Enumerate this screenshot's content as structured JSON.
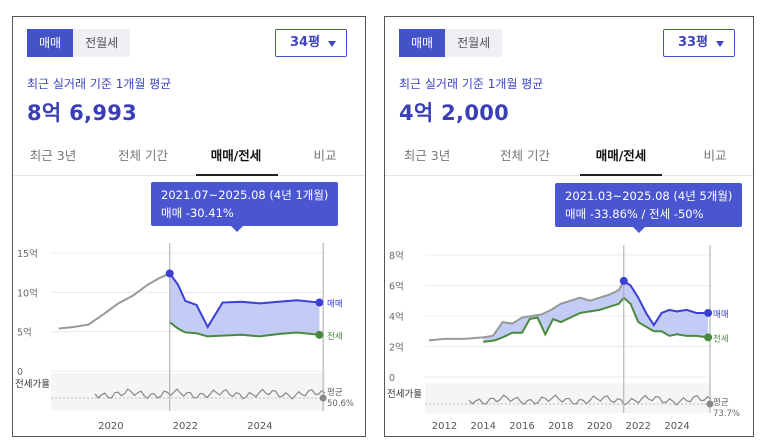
{
  "left": {
    "toggle": {
      "sale": "매매",
      "jeonse_monthly": "전월세"
    },
    "size_select": "34평",
    "subtitle": "최근 실거래 기준 1개월 평균",
    "price": "8억 6,993",
    "tabs": [
      "최근 3년",
      "전체 기간",
      "매매/전세",
      "비교"
    ],
    "active_tab": "매매/전세",
    "tooltip": {
      "period": "2021.07~2025.08 (4년 1개월)",
      "change": "매매 -30.41%"
    },
    "chart_data": {
      "type": "line",
      "y_tick_labels": [
        "15억",
        "10억",
        "5억",
        "0"
      ],
      "x_tick_labels": [
        "2020",
        "2022",
        "2024"
      ],
      "ylim": [
        0,
        15
      ],
      "series": [
        {
          "name": "매매",
          "color": "#3b3fd4",
          "x": [
            2018.6,
            2019.0,
            2019.4,
            2019.8,
            2020.2,
            2020.6,
            2021.0,
            2021.3,
            2021.58,
            2021.8,
            2022.0,
            2022.3,
            2022.6,
            2023.0,
            2023.5,
            2024.0,
            2024.5,
            2025.0,
            2025.6
          ],
          "y": [
            5.4,
            5.6,
            5.9,
            7.2,
            8.6,
            9.6,
            11.0,
            11.8,
            12.4,
            11.0,
            8.9,
            8.4,
            5.6,
            8.7,
            8.8,
            8.6,
            8.8,
            9.0,
            8.7
          ]
        },
        {
          "name": "전세",
          "color": "#4a8a3e",
          "x": [
            2021.58,
            2021.8,
            2022.0,
            2022.3,
            2022.6,
            2023.0,
            2023.5,
            2024.0,
            2024.5,
            2025.0,
            2025.6
          ],
          "y": [
            6.2,
            5.4,
            4.9,
            4.8,
            4.4,
            4.5,
            4.6,
            4.4,
            4.7,
            4.9,
            4.6
          ]
        }
      ],
      "sub_chart": {
        "label": "전세가율",
        "avg_label": "평균",
        "avg_value": "50.6%"
      }
    }
  },
  "right": {
    "toggle": {
      "sale": "매매",
      "jeonse_monthly": "전월세"
    },
    "size_select": "33평",
    "subtitle": "최근 실거래 기준 1개월 평균",
    "price": "4억 2,000",
    "tabs": [
      "최근 3년",
      "전체 기간",
      "매매/전세",
      "비교"
    ],
    "active_tab": "매매/전세",
    "tooltip": {
      "period": "2021.03~2025.08 (4년 5개월)",
      "change": "매매 -33.86%  /  전세 -50%"
    },
    "chart_data": {
      "type": "line",
      "y_tick_labels": [
        "8억",
        "6억",
        "4억",
        "2억",
        "0"
      ],
      "x_tick_labels": [
        "2012",
        "2014",
        "2016",
        "2018",
        "2020",
        "2022",
        "2024"
      ],
      "ylim": [
        0,
        8
      ],
      "series": [
        {
          "name": "매매",
          "color": "#3b3fd4",
          "x": [
            2011.2,
            2012.0,
            2013.0,
            2014.0,
            2014.5,
            2015.0,
            2015.5,
            2016.0,
            2016.5,
            2017.0,
            2017.5,
            2018.0,
            2018.5,
            2019.0,
            2019.5,
            2020.0,
            2020.5,
            2021.0,
            2021.25,
            2021.6,
            2022.0,
            2022.4,
            2022.8,
            2023.2,
            2023.6,
            2024.0,
            2024.5,
            2025.0,
            2025.6
          ],
          "y": [
            2.4,
            2.5,
            2.5,
            2.6,
            2.7,
            3.6,
            3.5,
            3.9,
            4.0,
            4.1,
            4.4,
            4.8,
            5.0,
            5.2,
            5.0,
            5.2,
            5.4,
            5.7,
            6.3,
            6.0,
            5.2,
            4.2,
            3.4,
            4.2,
            4.4,
            4.3,
            4.4,
            4.2,
            4.2
          ]
        },
        {
          "name": "전세",
          "color": "#4a8a3e",
          "x": [
            2014.0,
            2014.6,
            2015.0,
            2015.5,
            2016.0,
            2016.4,
            2016.8,
            2017.2,
            2017.6,
            2018.0,
            2018.5,
            2019.0,
            2019.5,
            2020.0,
            2020.5,
            2021.0,
            2021.25,
            2021.6,
            2022.0,
            2022.4,
            2022.8,
            2023.2,
            2023.6,
            2024.0,
            2024.5,
            2025.0,
            2025.6
          ],
          "y": [
            2.3,
            2.4,
            2.6,
            2.9,
            2.9,
            3.8,
            3.9,
            2.8,
            3.8,
            3.6,
            3.9,
            4.2,
            4.3,
            4.4,
            4.6,
            4.8,
            5.2,
            4.8,
            3.6,
            3.3,
            3.0,
            3.0,
            2.7,
            2.8,
            2.7,
            2.7,
            2.6
          ]
        }
      ],
      "sub_chart": {
        "label": "전세가율",
        "avg_label": "평균",
        "avg_value": "73.7%"
      }
    }
  }
}
